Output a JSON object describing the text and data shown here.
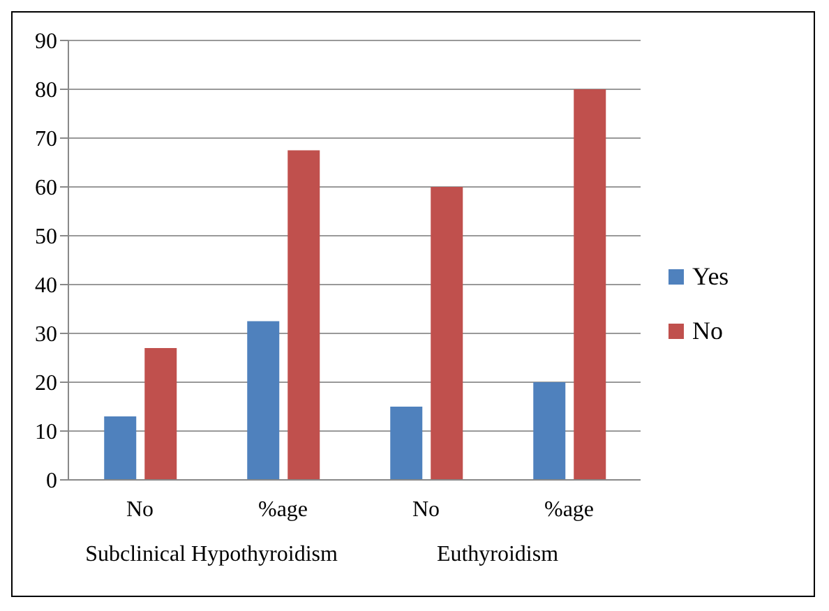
{
  "chart_data": {
    "type": "bar",
    "categories": [
      "No",
      "%age",
      "No",
      "%age"
    ],
    "series": [
      {
        "name": "Yes",
        "color": "#4f81bd",
        "values": [
          13,
          32.5,
          15,
          20
        ]
      },
      {
        "name": "No",
        "color": "#c0504d",
        "values": [
          27,
          67.5,
          60,
          80
        ]
      }
    ],
    "ylim": [
      0,
      90
    ],
    "yticks": [
      0,
      10,
      20,
      30,
      40,
      50,
      60,
      70,
      80,
      90
    ],
    "grid": "y",
    "legend": "right",
    "annotations": [
      "Subclinical Hypothyroidism",
      "Euthyroidism"
    ]
  }
}
